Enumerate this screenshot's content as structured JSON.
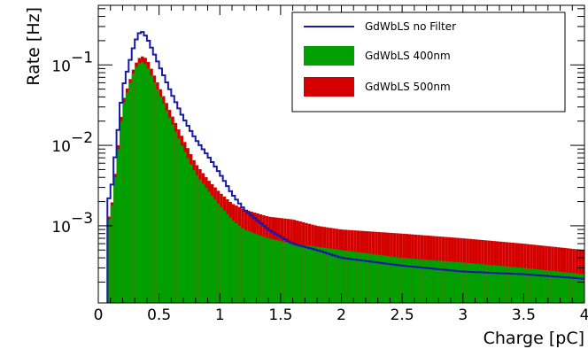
{
  "chart_data": {
    "type": "histogram",
    "xlabel": "Charge [pC]",
    "ylabel": "Rate [Hz]",
    "xlim": [
      0,
      4
    ],
    "ylim": [
      0.00011,
      0.55
    ],
    "yscale": "log",
    "grid": false,
    "legend_position": "top-right",
    "x_ticks": [
      {
        "value": 0,
        "label": "0"
      },
      {
        "value": 0.5,
        "label": "0.5"
      },
      {
        "value": 1,
        "label": "1"
      },
      {
        "value": 1.5,
        "label": "1.5"
      },
      {
        "value": 2,
        "label": "2"
      },
      {
        "value": 2.5,
        "label": "2.5"
      },
      {
        "value": 3,
        "label": "3"
      },
      {
        "value": 3.5,
        "label": "3.5"
      },
      {
        "value": 4,
        "label": "4"
      }
    ],
    "y_ticks": [
      {
        "value": 0.1,
        "base": "10",
        "exp": "−1"
      },
      {
        "value": 0.01,
        "base": "10",
        "exp": "−2"
      },
      {
        "value": 0.001,
        "base": "10",
        "exp": "−3"
      }
    ],
    "bin_width": 0.025,
    "x": [
      0.1,
      0.2,
      0.3,
      0.35,
      0.4,
      0.5,
      0.6,
      0.7,
      0.8,
      0.9,
      1.0,
      1.1,
      1.2,
      1.4,
      1.6,
      1.8,
      2.0,
      2.5,
      3.0,
      3.5,
      4.0
    ],
    "series": [
      {
        "name": "GdWbLS no Filter",
        "style": "line",
        "color": "#1a1aa8",
        "values": [
          0.0022,
          0.05,
          0.19,
          0.27,
          0.22,
          0.1,
          0.045,
          0.022,
          0.012,
          0.0075,
          0.0045,
          0.0025,
          0.0016,
          0.0009,
          0.0006,
          0.0005,
          0.0004,
          0.00032,
          0.00027,
          0.00025,
          0.00022
        ]
      },
      {
        "name": "GdWbLS 400nm",
        "style": "filled",
        "color": "#00a000",
        "values": [
          0.0012,
          0.03,
          0.09,
          0.11,
          0.1,
          0.045,
          0.02,
          0.009,
          0.0045,
          0.0028,
          0.0018,
          0.0012,
          0.0009,
          0.0007,
          0.0006,
          0.00055,
          0.0005,
          0.0004,
          0.00035,
          0.0003,
          0.00025
        ]
      },
      {
        "name": "GdWbLS 500nm",
        "style": "filled",
        "color": "#d40000",
        "values": [
          0.0013,
          0.034,
          0.1,
          0.13,
          0.12,
          0.055,
          0.025,
          0.012,
          0.006,
          0.0038,
          0.0026,
          0.0019,
          0.0016,
          0.0013,
          0.0012,
          0.001,
          0.0009,
          0.0008,
          0.0007,
          0.0006,
          0.0005
        ]
      }
    ]
  }
}
